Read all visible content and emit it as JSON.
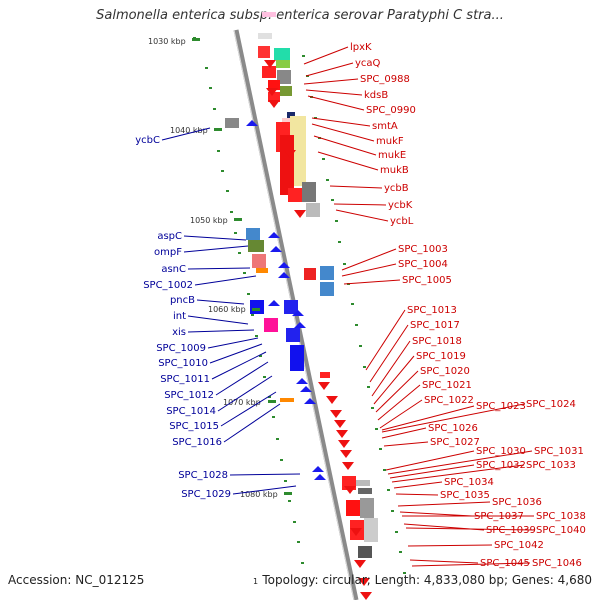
{
  "title": "Salmonella enterica subsp. enterica serovar Paratyphi C stra...",
  "accession": "Accession: NC_012125",
  "topology": "Topology: circular; Length: 4,833,080 bp; Genes: 4,680",
  "tick_one": "1",
  "colors": {
    "forward_label": "#cc0000",
    "reverse_label": "#000099",
    "backbone": "#8a8a8a",
    "tick": "#2e8b2e"
  },
  "kbp_ticks": [
    {
      "label": "1030 kbp",
      "kbp": 1030
    },
    {
      "label": "1040 kbp",
      "kbp": 1040
    },
    {
      "label": "1050 kbp",
      "kbp": 1050
    },
    {
      "label": "1060 kbp",
      "kbp": 1060
    },
    {
      "label": "1070 kbp",
      "kbp": 1070
    },
    {
      "label": "1080 kbp",
      "kbp": 1080
    }
  ],
  "forward_genes": [
    "lpxK",
    "ycaQ",
    "SPC_0988",
    "kdsB",
    "SPC_0990",
    "smtA",
    "mukF",
    "mukE",
    "mukB",
    "ycbB",
    "ycbK",
    "ycbL",
    "SPC_1003",
    "SPC_1004",
    "SPC_1005",
    "SPC_1013",
    "SPC_1017",
    "SPC_1018",
    "SPC_1019",
    "SPC_1020",
    "SPC_1021",
    "SPC_1022",
    "SPC_1023",
    "SPC_1024",
    "SPC_1026",
    "SPC_1027",
    "SPC_1030",
    "SPC_1031",
    "SPC_1032",
    "SPC_1033",
    "SPC_1034",
    "SPC_1035",
    "SPC_1036",
    "SPC_1037",
    "SPC_1038",
    "SPC_1039",
    "SPC_1040",
    "SPC_1042",
    "SPC_1045",
    "SPC_1046"
  ],
  "reverse_genes": [
    "ycbC",
    "aspC",
    "ompF",
    "asnC",
    "SPC_1002",
    "pncB",
    "int",
    "xis",
    "SPC_1009",
    "SPC_1010",
    "SPC_1011",
    "SPC_1012",
    "SPC_1014",
    "SPC_1015",
    "SPC_1016",
    "SPC_1028",
    "SPC_1029"
  ]
}
